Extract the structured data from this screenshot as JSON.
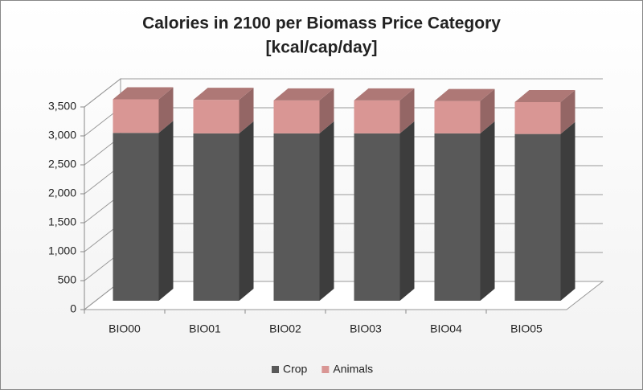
{
  "chart_data": {
    "type": "bar3d_stacked",
    "title": "Calories in 2100 per Biomass Price Category",
    "subtitle": "[kcal/cap/day]",
    "categories": [
      "BIO00",
      "BIO01",
      "BIO02",
      "BIO03",
      "BIO04",
      "BIO05"
    ],
    "series": [
      {
        "name": "Crop",
        "color": "#595959",
        "values": [
          2900,
          2890,
          2890,
          2890,
          2890,
          2880
        ]
      },
      {
        "name": "Animals",
        "color": "#d99694",
        "values": [
          580,
          580,
          570,
          570,
          560,
          550
        ]
      }
    ],
    "ylim": [
      0,
      3500
    ],
    "yticks": [
      0,
      500,
      {
        "value": 1000,
        "label": "1,000"
      },
      {
        "value": 1500,
        "label": "1,500"
      },
      {
        "value": 2000,
        "label": "2,000"
      },
      {
        "value": 2500,
        "label": "2,500"
      },
      {
        "value": 3000,
        "label": "3,000"
      },
      {
        "value": 3500,
        "label": "3,500"
      }
    ],
    "grid": true,
    "legend": "bottom"
  }
}
